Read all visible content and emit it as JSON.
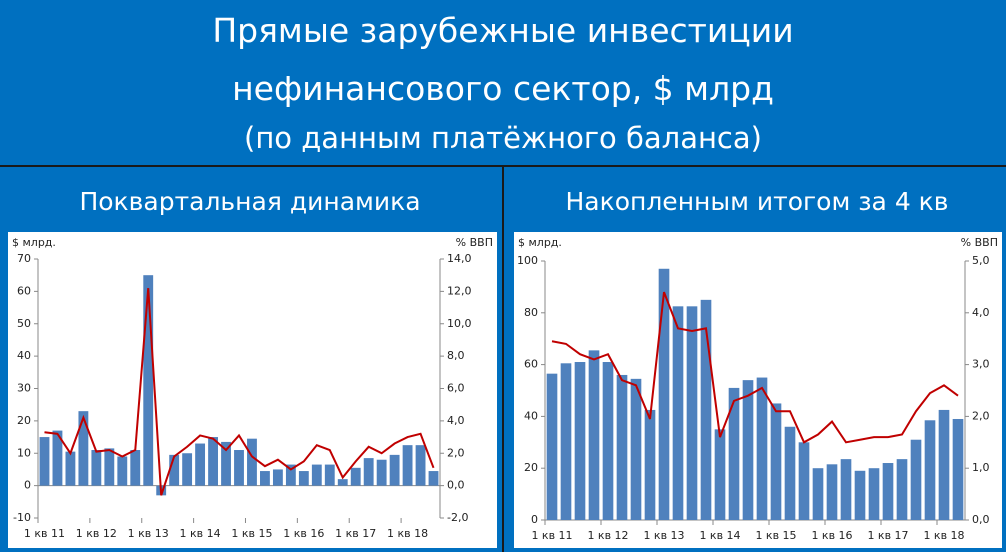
{
  "title": [
    "Прямые зарубежные инвестиции",
    "нефинансового сектор, $ млрд",
    "(по данным платёжного баланса)"
  ],
  "chart_data": [
    {
      "type": "bar",
      "title": "Поквартальная динамика",
      "y_label": "$ млрд.",
      "y2_label": "% ВВП",
      "categories": [
        "1 кв 11",
        null,
        null,
        null,
        "1 кв 12",
        null,
        null,
        null,
        "1 кв 13",
        null,
        null,
        null,
        "1 кв 14",
        null,
        null,
        null,
        "1 кв 15",
        null,
        null,
        null,
        "1 кв 16",
        null,
        null,
        null,
        "1 кв 17",
        null,
        null,
        null,
        "1 кв 18",
        null,
        null
      ],
      "series": [
        {
          "type": "bar",
          "color": "#4f81bd",
          "values": [
            15,
            17,
            10.5,
            23,
            11,
            11.5,
            9,
            11,
            65,
            -3,
            9.5,
            10,
            13,
            15,
            13.5,
            11,
            14.5,
            4.5,
            5,
            6.5,
            4.5,
            6.5,
            6.5,
            2,
            5.5,
            8.5,
            8,
            9.5,
            12.5,
            12.5,
            4.5
          ]
        },
        {
          "type": "line",
          "axis": "y2",
          "color": "#c00000",
          "values": [
            3.3,
            3.2,
            2.0,
            4.2,
            2.1,
            2.2,
            1.8,
            2.2,
            12.2,
            -0.6,
            1.8,
            2.4,
            3.1,
            2.9,
            2.2,
            3.1,
            1.8,
            1.2,
            1.6,
            1.0,
            1.5,
            2.5,
            2.2,
            0.5,
            1.5,
            2.4,
            2.0,
            2.6,
            3.0,
            3.2,
            1.1
          ]
        }
      ],
      "ylim": [
        -10,
        70
      ],
      "yticks": [
        -10,
        0,
        10,
        20,
        30,
        40,
        50,
        60,
        70
      ],
      "y2lim": [
        -2,
        14
      ],
      "y2ticks": [
        {
          "value": -2,
          "label": "-2,0"
        },
        {
          "value": 0,
          "label": "0,0"
        },
        {
          "value": 2,
          "label": "2,0"
        },
        {
          "value": 4,
          "label": "4,0"
        },
        {
          "value": 6,
          "label": "6,0"
        },
        {
          "value": 8,
          "label": "8,0"
        },
        {
          "value": 10,
          "label": "10,0"
        },
        {
          "value": 12,
          "label": "12,0"
        },
        {
          "value": 14,
          "label": "14,0"
        }
      ],
      "grid": false
    },
    {
      "type": "bar",
      "title": "Накопленным итогом за 4 кв",
      "y_label": "$ млрд.",
      "y2_label": "% ВВП",
      "categories": [
        "1 кв 11",
        null,
        null,
        null,
        "1 кв 12",
        null,
        null,
        null,
        "1 кв 13",
        null,
        null,
        null,
        "1 кв 14",
        null,
        null,
        null,
        "1 кв 15",
        null,
        null,
        null,
        "1 кв 16",
        null,
        null,
        null,
        "1 кв 17",
        null,
        null,
        null,
        "1 кв 18",
        null
      ],
      "series": [
        {
          "type": "bar",
          "color": "#4f81bd",
          "values": [
            56.5,
            60.5,
            61,
            65.5,
            61,
            56,
            54.5,
            42.5,
            97,
            82.5,
            82.5,
            85,
            35,
            51,
            54,
            55,
            45,
            36,
            30,
            20,
            21.5,
            23.5,
            19,
            20,
            22,
            23.5,
            31,
            38.5,
            42.5,
            39
          ]
        },
        {
          "type": "line",
          "axis": "y2",
          "color": "#c00000",
          "values": [
            3.45,
            3.4,
            3.2,
            3.1,
            3.2,
            2.7,
            2.6,
            1.95,
            4.4,
            3.7,
            3.65,
            3.7,
            1.6,
            2.3,
            2.4,
            2.55,
            2.1,
            2.1,
            1.5,
            1.65,
            1.9,
            1.5,
            1.55,
            1.6,
            1.6,
            1.65,
            2.1,
            2.45,
            2.6,
            2.4
          ]
        }
      ],
      "ylim": [
        0,
        100
      ],
      "yticks": [
        0,
        20,
        40,
        60,
        80,
        100
      ],
      "y2lim": [
        0,
        5
      ],
      "y2ticks": [
        {
          "value": 0,
          "label": "0,0"
        },
        {
          "value": 1,
          "label": "1,0"
        },
        {
          "value": 2,
          "label": "2,0"
        },
        {
          "value": 3,
          "label": "3,0"
        },
        {
          "value": 4,
          "label": "4,0"
        },
        {
          "value": 5,
          "label": "5,0"
        }
      ],
      "grid": false
    }
  ]
}
